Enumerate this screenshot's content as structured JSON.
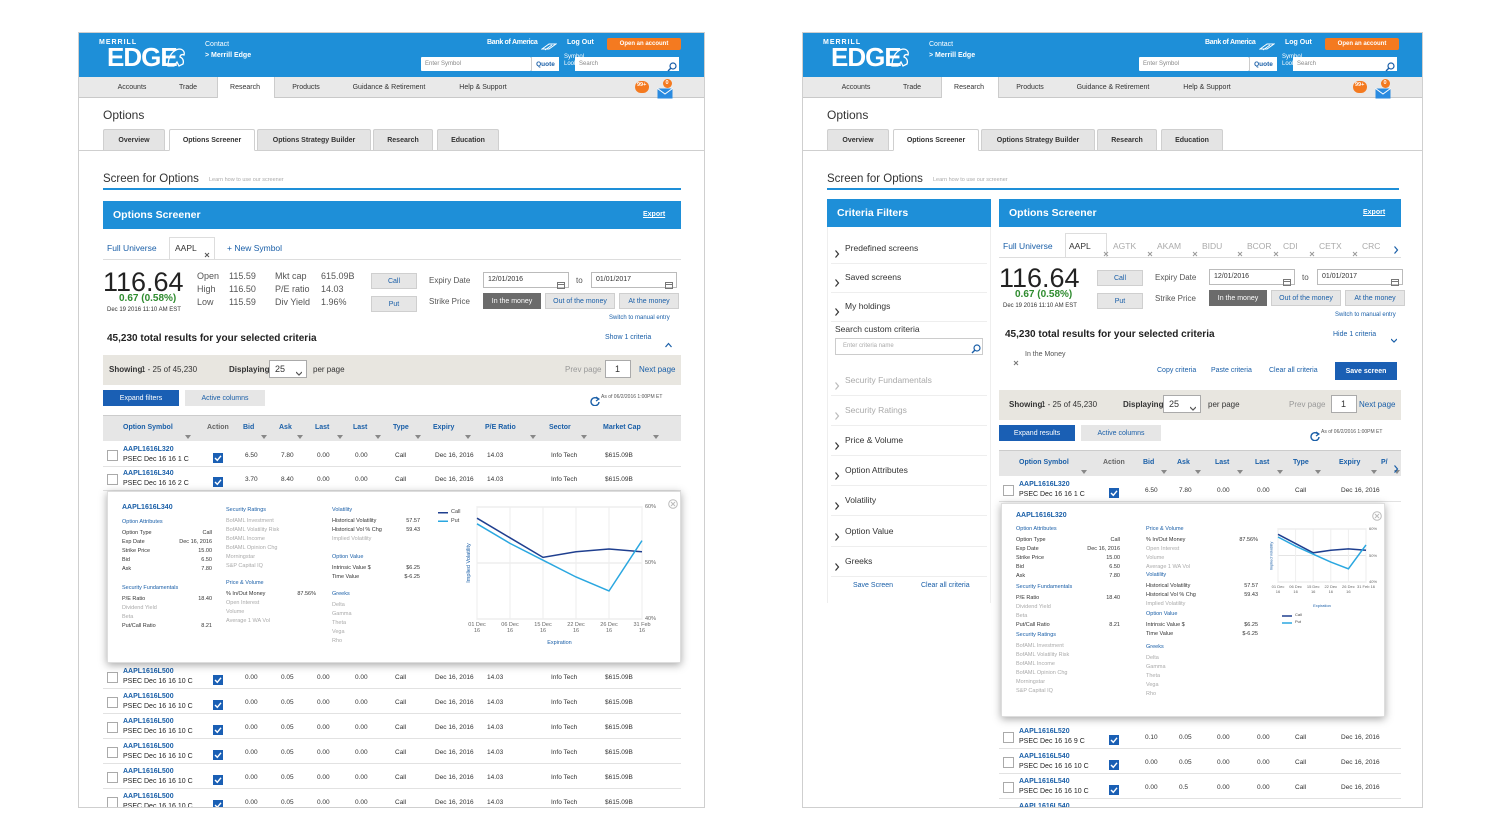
{
  "header": {
    "brand_top": "MERRILL",
    "brand": "EDGE",
    "contact": "Contact",
    "contact_link": "> Merrill Edge",
    "bank": "Bank of America",
    "logout": "Log Out",
    "open_account": "Open an account",
    "symbol_placeholder": "Enter Symbol",
    "quote_button": "Quote",
    "symbol_lookup": "Symbol Lookup",
    "search_placeholder": "Search",
    "nav": [
      "Accounts",
      "Trade",
      "Research",
      "Products",
      "Guidance & Retirement",
      "Help & Support"
    ],
    "badges": [
      "99+",
      "0"
    ]
  },
  "page_title": "Options",
  "tabs": [
    "Overview",
    "Options Screener",
    "Options Strategy Builder",
    "Research",
    "Education"
  ],
  "section_title": "Screen for Options",
  "section_help": "Learn how to use our screener",
  "panel_title": "Options Screener",
  "export": "Export",
  "quote": {
    "price": "116.64",
    "change": "0.67 (0.58%)",
    "time": "Dec 19 2016 11:10 AM EST",
    "stats": [
      [
        "Open",
        "115.59"
      ],
      [
        "High",
        "116.50"
      ],
      [
        "Low",
        "115.59"
      ]
    ],
    "stats2": [
      [
        "Mkt cap",
        "615.09B"
      ],
      [
        "P/E ratio",
        "14.03"
      ],
      [
        "Div Yield",
        "1.96%"
      ]
    ]
  },
  "filters": {
    "call": "Call",
    "put": "Put",
    "expiry_label": "Expiry Date",
    "from": "12/01/2016",
    "to_word": "to",
    "to": "01/01/2017",
    "strike_label": "Strike Price",
    "strike": [
      "In the money",
      "Out of the money",
      "At the money"
    ],
    "manual": "Switch to manual entry"
  },
  "results_text": "45,230 total results for your selected criteria",
  "paging": {
    "showing_label": "Showing:",
    "showing": "1 - 25 of 45,230",
    "displaying_label": "Displaying:",
    "per": "25",
    "per_page": "per page",
    "prev": "Prev page",
    "page": "1",
    "next": "Next page"
  },
  "active_columns": "Active columns",
  "as_of": "As of 06/2/2016 1:00PM ET",
  "popup_sections": [
    {
      "title": "Option Attributes",
      "items": [
        [
          "Option Type",
          "Call"
        ],
        [
          "Exp Date",
          "Dec 16, 2016"
        ],
        [
          "Strike Price",
          "15.00"
        ],
        [
          "Bid",
          "6.50"
        ],
        [
          "Ask",
          "7.80"
        ]
      ]
    },
    {
      "title": "Security Fundamentals",
      "items": [
        [
          "P/E Ratio",
          "18.40"
        ],
        [
          "Dividend Yield"
        ],
        [
          "Beta"
        ],
        [
          "Put/Call Ratio",
          "8.21"
        ]
      ]
    },
    {
      "title": "Security Ratings",
      "items": [
        [
          "BofAML Investment"
        ],
        [
          "BofAML Volatility Risk"
        ],
        [
          "BofAML Income"
        ],
        [
          "BofAML Opinion Chg"
        ],
        [
          "Morningstar"
        ],
        [
          "S&P Capital IQ"
        ]
      ]
    },
    {
      "title": "Price & Volume",
      "items": [
        [
          "% In/Out Money",
          "87.56%"
        ],
        [
          "Open Interest"
        ],
        [
          "Volume"
        ],
        [
          "Average 1 WA Vol"
        ]
      ]
    },
    {
      "title": "Volatility",
      "items": [
        [
          "Historical Volatility",
          "57.57"
        ],
        [
          "Historical Vol % Chg",
          "59.43"
        ],
        [
          "Implied Volatility"
        ]
      ]
    },
    {
      "title": "Option Value",
      "items": [
        [
          "Intrinsic Value $",
          "$6.25"
        ],
        [
          "Time Value",
          "$-6.25"
        ]
      ]
    },
    {
      "title": "Greeks",
      "items": [
        [
          "Delta"
        ],
        [
          "Gamma"
        ],
        [
          "Theta"
        ],
        [
          "Vega"
        ],
        [
          "Rho"
        ]
      ]
    }
  ],
  "chart_data": {
    "type": "line",
    "x_label": "Expiration",
    "y_label": "Implied Volatility",
    "categories": [
      "01 Dec 16",
      "06 Dec 16",
      "15 Dec 16",
      "22 Dec 16",
      "26 Dec 16",
      "31 Feb 16"
    ],
    "series": [
      {
        "name": "Call",
        "color": "#1f3f8f",
        "values": [
          58,
          54.5,
          51,
          52,
          52.5,
          52
        ]
      },
      {
        "name": "Put",
        "color": "#2aa7e0",
        "values": [
          57,
          53.5,
          50.5,
          47.5,
          45,
          54
        ]
      }
    ],
    "ylim": [
      40,
      60
    ],
    "yticks": [
      {
        "value": 40,
        "label": "40%"
      },
      {
        "value": 50,
        "label": "50%"
      },
      {
        "value": 60,
        "label": "60%"
      }
    ],
    "grid": true
  },
  "left": {
    "symbols": [
      "Full Universe",
      "AAPL",
      "+ New Symbol"
    ],
    "show_criteria": "Show 1 criteria",
    "expand_button": "Expand filters",
    "popup_title": "AAPL1616L340",
    "columns": [
      "Option Symbol",
      "Action",
      "Bid",
      "Ask",
      "Last",
      "Last",
      "Type",
      "Expiry",
      "P/E Ratio",
      "Sector",
      "Market Cap"
    ],
    "rows_top": [
      [
        "AAPL1616L320",
        "PSEC Dec 16 16 1 C",
        "6.50",
        "7.80",
        "0.00",
        "0.00",
        "Call",
        "Dec 16, 2016",
        "14.03",
        "Info Tech",
        "$615.09B"
      ],
      [
        "AAPL1616L340",
        "PSEC Dec 16 16 2 C",
        "3.70",
        "8.40",
        "0.00",
        "0.00",
        "Call",
        "Dec 16, 2016",
        "14.03",
        "Info Tech",
        "$615.09B"
      ]
    ],
    "rows_bottom": [
      [
        "AAPL1616L500",
        "PSEC Dec 16 16 10 C",
        "0.00",
        "0.05",
        "0.00",
        "0.00",
        "Call",
        "Dec 16, 2016",
        "14.03",
        "Info Tech",
        "$615.09B"
      ],
      [
        "AAPL1616L500",
        "PSEC Dec 16 16 10 C",
        "0.00",
        "0.05",
        "0.00",
        "0.00",
        "Call",
        "Dec 16, 2016",
        "14.03",
        "Info Tech",
        "$615.09B"
      ],
      [
        "AAPL1616L500",
        "PSEC Dec 16 16 10 C",
        "0.00",
        "0.05",
        "0.00",
        "0.00",
        "Call",
        "Dec 16, 2016",
        "14.03",
        "Info Tech",
        "$615.09B"
      ],
      [
        "AAPL1616L500",
        "PSEC Dec 16 16 10 C",
        "0.00",
        "0.05",
        "0.00",
        "0.00",
        "Call",
        "Dec 16, 2016",
        "14.03",
        "Info Tech",
        "$615.09B"
      ],
      [
        "AAPL1616L500",
        "PSEC Dec 16 16 10 C",
        "0.00",
        "0.05",
        "0.00",
        "0.00",
        "Call",
        "Dec 16, 2016",
        "14.03",
        "Info Tech",
        "$615.09B"
      ],
      [
        "AAPL1616L500",
        "PSEC Dec 16 16 10 C",
        "0.00",
        "0.05",
        "0.00",
        "0.00",
        "Call",
        "Dec 16, 2016",
        "14.03",
        "Info Tech",
        "$615.09B"
      ]
    ]
  },
  "right": {
    "criteria_filters": {
      "title": "Criteria Filters",
      "items": [
        "Predefined screens",
        "Saved screens",
        "My holdings"
      ],
      "search_label": "Search custom criteria",
      "search_placeholder": "Enter criteria name",
      "disabled": [
        "Security Fundamentals",
        "Security Ratings"
      ],
      "groups": [
        "Price & Volume",
        "Option Attributes",
        "Volatility",
        "Option Value",
        "Greeks"
      ],
      "save": "Save Screen",
      "clear": "Clear all criteria"
    },
    "symbols": [
      "Full Universe",
      "AAPL",
      "AGTK",
      "AKAM",
      "BIDU",
      "BCOR",
      "CDI",
      "CETX",
      "CRC"
    ],
    "hide_criteria": "Hide 1 criteria",
    "chip": "In the Money",
    "criteria_actions": [
      "Copy criteria",
      "Paste criteria",
      "Clear all criteria"
    ],
    "save_screen": "Save screen",
    "expand_button": "Expand results",
    "popup_title": "AAPL1616L320",
    "columns": [
      "Option Symbol",
      "Action",
      "Bid",
      "Ask",
      "Last",
      "Last",
      "Type",
      "Expiry",
      "P/"
    ],
    "rows_top": [
      [
        "AAPL1616L320",
        "PSEC Dec 16 16 1 C",
        "6.50",
        "7.80",
        "0.00",
        "0.00",
        "Call",
        "Dec 16, 2016"
      ]
    ],
    "rows_bottom": [
      [
        "AAPL1616L520",
        "PSEC Dec 16 16 9 C",
        "0.10",
        "0.05",
        "0.00",
        "0.00",
        "Call",
        "Dec 16, 2016"
      ],
      [
        "AAPL1616L540",
        "PSEC Dec 16 16 10 C",
        "0.00",
        "0.05",
        "0.00",
        "0.00",
        "Call",
        "Dec 16, 2016"
      ],
      [
        "AAPL1616L540",
        "PSEC Dec 16 16 10 C",
        "0.00",
        "0.5",
        "0.00",
        "0.00",
        "Call",
        "Dec 16, 2016"
      ],
      [
        "AAPL1616L540",
        "PSEC Dec 16 16 10 C",
        "0.00",
        "0.05",
        "0.00",
        "0.00",
        "Call",
        "Dec 16, 2016"
      ]
    ]
  }
}
